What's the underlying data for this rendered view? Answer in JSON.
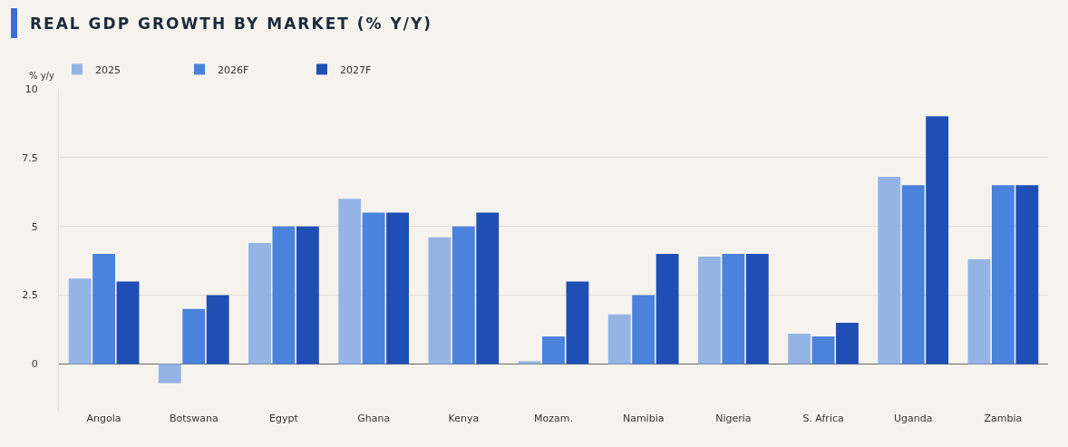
{
  "chart_data": {
    "type": "bar",
    "title": "REAL GDP GROWTH BY MARKET (% Y/Y)",
    "ylabel": "% y/y",
    "categories": [
      "Angola",
      "Botswana",
      "Egypt",
      "Ghana",
      "Kenya",
      "Mozam.",
      "Namibia",
      "Nigeria",
      "S. Africa",
      "Uganda",
      "Zambia"
    ],
    "series": [
      {
        "name": "2025",
        "color": "#94b4e6",
        "values": [
          3.1,
          -0.7,
          4.4,
          6.0,
          4.6,
          0.1,
          1.8,
          3.9,
          1.1,
          6.8,
          3.8
        ]
      },
      {
        "name": "2026F",
        "color": "#4a82dc",
        "values": [
          4.0,
          2.0,
          5.0,
          5.5,
          5.0,
          1.0,
          2.5,
          4.0,
          1.0,
          6.5,
          6.5
        ]
      },
      {
        "name": "2027F",
        "color": "#1f4fb5",
        "values": [
          3.0,
          2.5,
          5.0,
          5.5,
          5.5,
          3.0,
          4.0,
          4.0,
          1.5,
          9.0,
          6.5
        ]
      }
    ],
    "ylim": [
      -1.7,
      10
    ],
    "yticks": [
      {
        "value": 0,
        "label": "0"
      },
      {
        "value": 2.5,
        "label": "2.5"
      },
      {
        "value": 5,
        "label": "5"
      },
      {
        "value": 7.5,
        "label": "7.5"
      },
      {
        "value": 10,
        "label": "10"
      }
    ],
    "grid": "y",
    "legend": "top left"
  }
}
